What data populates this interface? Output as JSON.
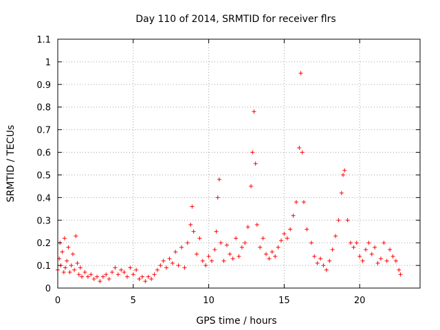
{
  "chart_data": {
    "type": "scatter",
    "title": "Day 110 of 2014, SRMTID for receiver flrs",
    "xlabel": "GPS time / hours",
    "ylabel": "SRMTID / TECUs",
    "xlim": [
      0,
      24
    ],
    "ylim": [
      0,
      1.1
    ],
    "xticks": [
      0,
      5,
      10,
      15,
      20
    ],
    "xtick_labels": [
      "0",
      "5",
      "10",
      "15",
      "20"
    ],
    "yticks": [
      0,
      0.1,
      0.2,
      0.3,
      0.4,
      0.5,
      0.6,
      0.7,
      0.8,
      0.9,
      1,
      1.1
    ],
    "ytick_labels": [
      "0",
      "0.1",
      "0.2",
      "0.3",
      "0.4",
      "0.5",
      "0.6",
      "0.7",
      "0.8",
      "0.9",
      "1",
      "1.1"
    ],
    "grid": true,
    "marker": "+",
    "marker_color": "#ff0000",
    "series": [
      {
        "name": "SRMTID",
        "points": [
          [
            0.0,
            0.08
          ],
          [
            0.1,
            0.13
          ],
          [
            0.15,
            0.2
          ],
          [
            0.2,
            0.1
          ],
          [
            0.3,
            0.16
          ],
          [
            0.4,
            0.07
          ],
          [
            0.45,
            0.22
          ],
          [
            0.5,
            0.09
          ],
          [
            0.6,
            0.12
          ],
          [
            0.7,
            0.18
          ],
          [
            0.8,
            0.07
          ],
          [
            0.9,
            0.1
          ],
          [
            1.0,
            0.15
          ],
          [
            1.1,
            0.08
          ],
          [
            1.2,
            0.23
          ],
          [
            1.3,
            0.11
          ],
          [
            1.4,
            0.06
          ],
          [
            1.5,
            0.09
          ],
          [
            1.6,
            0.05
          ],
          [
            1.8,
            0.07
          ],
          [
            2.0,
            0.05
          ],
          [
            2.2,
            0.06
          ],
          [
            2.4,
            0.04
          ],
          [
            2.6,
            0.05
          ],
          [
            2.8,
            0.03
          ],
          [
            3.0,
            0.05
          ],
          [
            3.2,
            0.06
          ],
          [
            3.4,
            0.04
          ],
          [
            3.6,
            0.07
          ],
          [
            3.8,
            0.09
          ],
          [
            4.0,
            0.06
          ],
          [
            4.2,
            0.08
          ],
          [
            4.4,
            0.07
          ],
          [
            4.6,
            0.05
          ],
          [
            4.8,
            0.09
          ],
          [
            5.0,
            0.06
          ],
          [
            5.2,
            0.08
          ],
          [
            5.4,
            0.04
          ],
          [
            5.6,
            0.05
          ],
          [
            5.8,
            0.03
          ],
          [
            6.0,
            0.05
          ],
          [
            6.2,
            0.04
          ],
          [
            6.4,
            0.06
          ],
          [
            6.6,
            0.08
          ],
          [
            6.8,
            0.1
          ],
          [
            7.0,
            0.12
          ],
          [
            7.2,
            0.09
          ],
          [
            7.4,
            0.13
          ],
          [
            7.6,
            0.11
          ],
          [
            7.8,
            0.16
          ],
          [
            8.0,
            0.1
          ],
          [
            8.2,
            0.18
          ],
          [
            8.4,
            0.09
          ],
          [
            8.6,
            0.2
          ],
          [
            8.8,
            0.28
          ],
          [
            8.9,
            0.36
          ],
          [
            9.0,
            0.25
          ],
          [
            9.2,
            0.15
          ],
          [
            9.4,
            0.22
          ],
          [
            9.6,
            0.12
          ],
          [
            9.8,
            0.1
          ],
          [
            10.0,
            0.14
          ],
          [
            10.2,
            0.12
          ],
          [
            10.4,
            0.17
          ],
          [
            10.5,
            0.25
          ],
          [
            10.6,
            0.4
          ],
          [
            10.7,
            0.48
          ],
          [
            10.8,
            0.2
          ],
          [
            11.0,
            0.12
          ],
          [
            11.2,
            0.19
          ],
          [
            11.4,
            0.15
          ],
          [
            11.6,
            0.13
          ],
          [
            11.8,
            0.22
          ],
          [
            12.0,
            0.14
          ],
          [
            12.2,
            0.18
          ],
          [
            12.4,
            0.2
          ],
          [
            12.6,
            0.27
          ],
          [
            12.8,
            0.45
          ],
          [
            12.9,
            0.6
          ],
          [
            13.0,
            0.78
          ],
          [
            13.1,
            0.55
          ],
          [
            13.2,
            0.28
          ],
          [
            13.4,
            0.18
          ],
          [
            13.6,
            0.22
          ],
          [
            13.8,
            0.15
          ],
          [
            14.0,
            0.13
          ],
          [
            14.2,
            0.16
          ],
          [
            14.4,
            0.14
          ],
          [
            14.6,
            0.18
          ],
          [
            14.8,
            0.21
          ],
          [
            15.0,
            0.24
          ],
          [
            15.2,
            0.22
          ],
          [
            15.4,
            0.26
          ],
          [
            15.6,
            0.32
          ],
          [
            15.8,
            0.38
          ],
          [
            16.0,
            0.62
          ],
          [
            16.1,
            0.95
          ],
          [
            16.2,
            0.6
          ],
          [
            16.3,
            0.38
          ],
          [
            16.5,
            0.26
          ],
          [
            16.8,
            0.2
          ],
          [
            17.0,
            0.14
          ],
          [
            17.2,
            0.11
          ],
          [
            17.4,
            0.13
          ],
          [
            17.6,
            0.1
          ],
          [
            17.8,
            0.08
          ],
          [
            18.0,
            0.12
          ],
          [
            18.2,
            0.17
          ],
          [
            18.4,
            0.23
          ],
          [
            18.6,
            0.3
          ],
          [
            18.8,
            0.42
          ],
          [
            18.9,
            0.5
          ],
          [
            19.0,
            0.52
          ],
          [
            19.2,
            0.3
          ],
          [
            19.4,
            0.2
          ],
          [
            19.6,
            0.18
          ],
          [
            19.8,
            0.2
          ],
          [
            20.0,
            0.14
          ],
          [
            20.2,
            0.12
          ],
          [
            20.4,
            0.17
          ],
          [
            20.6,
            0.2
          ],
          [
            20.8,
            0.15
          ],
          [
            21.0,
            0.18
          ],
          [
            21.2,
            0.11
          ],
          [
            21.4,
            0.13
          ],
          [
            21.6,
            0.2
          ],
          [
            21.8,
            0.12
          ],
          [
            22.0,
            0.17
          ],
          [
            22.2,
            0.14
          ],
          [
            22.4,
            0.12
          ],
          [
            22.6,
            0.08
          ],
          [
            22.7,
            0.06
          ]
        ]
      }
    ]
  }
}
